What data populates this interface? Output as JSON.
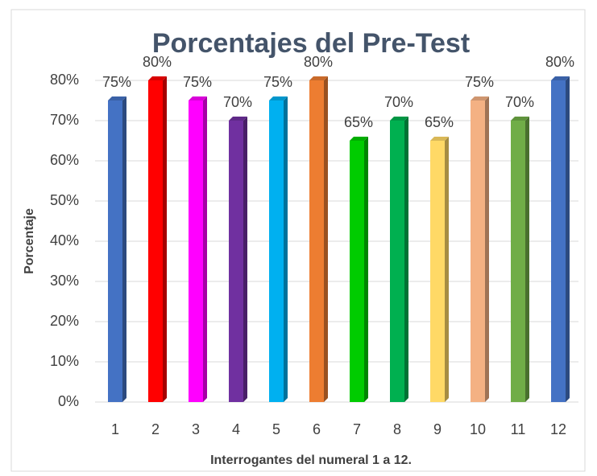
{
  "chart_data": {
    "type": "bar",
    "title": "Porcentajes del Pre-Test",
    "x_label": "Interrogantes del numeral 1 a 12.",
    "y_label": "Porcentaje",
    "categories": [
      "1",
      "2",
      "3",
      "4",
      "5",
      "6",
      "7",
      "8",
      "9",
      "10",
      "11",
      "12"
    ],
    "values": [
      75,
      80,
      75,
      70,
      75,
      80,
      65,
      70,
      65,
      75,
      70,
      80
    ],
    "value_labels": [
      "75%",
      "80%",
      "75%",
      "70%",
      "75%",
      "80%",
      "65%",
      "70%",
      "65%",
      "75%",
      "70%",
      "80%"
    ],
    "colors": [
      "#4472c4",
      "#ff0000",
      "#ff00ff",
      "#7030a0",
      "#00b0f0",
      "#ed7d31",
      "#00cc00",
      "#00b050",
      "#ffd966",
      "#f4b183",
      "#70ad47",
      "#4472c4"
    ],
    "ylim": [
      0,
      80
    ],
    "yticks": [
      {
        "value": 0,
        "label": "0%"
      },
      {
        "value": 10,
        "label": "10%"
      },
      {
        "value": 20,
        "label": "20%"
      },
      {
        "value": 30,
        "label": "30%"
      },
      {
        "value": 40,
        "label": "40%"
      },
      {
        "value": 50,
        "label": "50%"
      },
      {
        "value": 60,
        "label": "60%"
      },
      {
        "value": 70,
        "label": "70%"
      },
      {
        "value": 80,
        "label": "80%"
      }
    ],
    "grid": true
  }
}
